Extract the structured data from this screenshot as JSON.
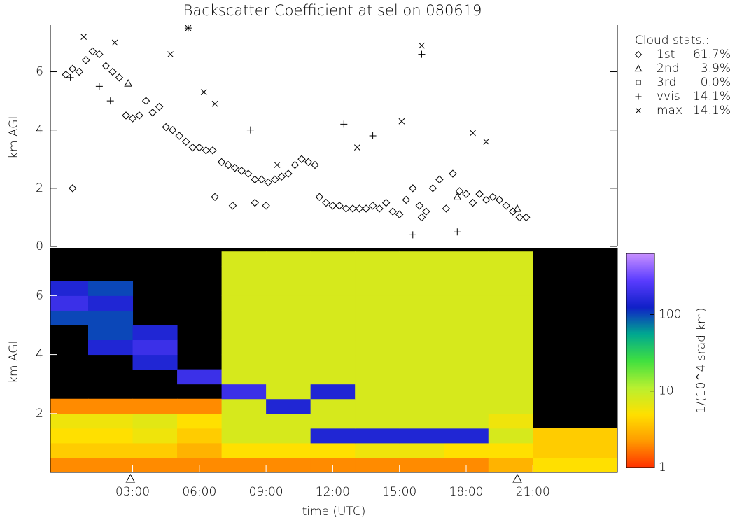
{
  "chart_data": [
    {
      "type": "scatter",
      "title": "Backscatter Coefficient at sel on 080619",
      "ylabel": "km AGL",
      "xlim": [
        -0.7,
        24.8
      ],
      "ylim": [
        0,
        7.6
      ],
      "yticks": [
        0,
        2,
        4,
        6
      ],
      "legend_title": "Cloud stats.:",
      "series": [
        {
          "name": "1st",
          "marker": "diamond",
          "color": "#000000",
          "value": 61.7,
          "value_label": "61.7%",
          "x": [
            0,
            0.3,
            0.6,
            0.9,
            1.2,
            1.5,
            1.8,
            2.1,
            2.4,
            2.7,
            3.0,
            3.3,
            3.6,
            3.9,
            4.2,
            4.5,
            4.8,
            5.1,
            5.4,
            5.7,
            6.0,
            6.3,
            6.6,
            7.0,
            7.3,
            7.6,
            7.9,
            8.2,
            8.5,
            8.8,
            9.1,
            9.4,
            9.7,
            10.0,
            10.3,
            10.6,
            10.9,
            11.2,
            11.4,
            11.7,
            12.0,
            12.3,
            12.6,
            12.9,
            13.2,
            13.5,
            13.8,
            14.1,
            14.4,
            14.7,
            15.0,
            15.3,
            15.6,
            15.9,
            16.2,
            16.5,
            16.8,
            17.1,
            17.4,
            17.7,
            18.0,
            18.3,
            18.6,
            18.9,
            19.2,
            19.5,
            19.8,
            20.1,
            20.4,
            20.7,
            0.3,
            6.7,
            7.5,
            8.5,
            9.0,
            16.0
          ],
          "y": [
            5.9,
            6.1,
            6.0,
            6.4,
            6.7,
            6.6,
            6.2,
            6.0,
            5.8,
            4.5,
            4.4,
            4.5,
            5.0,
            4.6,
            4.8,
            4.1,
            4.0,
            3.8,
            3.6,
            3.4,
            3.4,
            3.3,
            3.3,
            2.9,
            2.8,
            2.7,
            2.6,
            2.5,
            2.3,
            2.3,
            2.2,
            2.3,
            2.4,
            2.5,
            2.8,
            3.0,
            2.9,
            2.8,
            1.7,
            1.5,
            1.4,
            1.4,
            1.3,
            1.3,
            1.3,
            1.3,
            1.4,
            1.3,
            1.5,
            1.2,
            1.1,
            1.6,
            2.0,
            1.4,
            1.2,
            2.0,
            2.3,
            1.3,
            2.5,
            1.9,
            1.8,
            1.5,
            1.8,
            1.6,
            1.7,
            1.6,
            1.4,
            1.2,
            1.0,
            1.0,
            2.0,
            1.7,
            1.4,
            1.5,
            1.4,
            1.0
          ]
        },
        {
          "name": "2nd",
          "marker": "triangle",
          "color": "#000000",
          "value": 3.9,
          "value_label": "3.9%",
          "x": [
            2.8,
            17.6,
            20.3
          ],
          "y": [
            5.6,
            1.7,
            1.3
          ]
        },
        {
          "name": "3rd",
          "marker": "square",
          "color": "#000000",
          "value": 0.0,
          "value_label": "0.0%",
          "x": [],
          "y": []
        },
        {
          "name": "vvis",
          "marker": "plus",
          "color": "#000000",
          "value": 14.1,
          "value_label": "14.1%",
          "x": [
            0.2,
            1.5,
            2.0,
            5.5,
            13.8,
            16.0,
            15.6,
            17.6,
            12.5,
            8.3
          ],
          "y": [
            5.8,
            5.5,
            5.0,
            7.5,
            3.8,
            6.6,
            0.4,
            0.5,
            4.2,
            4.0
          ]
        },
        {
          "name": "max",
          "marker": "cross",
          "color": "#000000",
          "value": 14.1,
          "value_label": "14.1%",
          "x": [
            0.8,
            2.2,
            5.5,
            4.7,
            6.2,
            6.7,
            16.0,
            15.1,
            13.1,
            18.3,
            18.9,
            9.5
          ],
          "y": [
            7.2,
            7.0,
            7.5,
            6.6,
            5.3,
            4.9,
            6.9,
            4.3,
            3.4,
            3.9,
            3.6,
            2.8
          ]
        }
      ]
    },
    {
      "type": "heatmap",
      "ylabel": "km AGL",
      "xlabel": "time (UTC)",
      "xlim": [
        -0.7,
        24.8
      ],
      "ylim": [
        0,
        7.6
      ],
      "xticks": [
        {
          "value": 3,
          "label": "03:00"
        },
        {
          "value": 6,
          "label": "06:00"
        },
        {
          "value": 9,
          "label": "09:00"
        },
        {
          "value": 12,
          "label": "12:00"
        },
        {
          "value": 15,
          "label": "15:00"
        },
        {
          "value": 18,
          "label": "18:00"
        },
        {
          "value": 21,
          "label": "21:00"
        }
      ],
      "yticks": [
        2,
        4,
        6
      ],
      "x": [
        0,
        2,
        4,
        6,
        8,
        10,
        12,
        14,
        16,
        18,
        20,
        22,
        24
      ],
      "y": [
        0.25,
        0.75,
        1.25,
        1.75,
        2.25,
        2.75,
        3.25,
        3.75,
        4.25,
        4.75,
        5.25,
        5.75,
        6.25,
        6.75,
        7.25
      ],
      "z": [
        [
          2,
          2,
          2,
          2,
          2,
          2,
          2,
          2,
          2,
          2,
          3,
          5,
          5
        ],
        [
          4,
          4,
          4,
          3,
          5,
          5,
          5,
          6,
          6,
          5,
          5,
          4,
          4
        ],
        [
          5,
          5,
          6,
          4,
          8,
          8,
          150,
          150,
          150,
          150,
          8,
          4,
          4
        ],
        [
          6,
          6,
          7,
          5,
          8,
          8,
          8,
          8,
          8,
          8,
          6,
          null,
          null
        ],
        [
          2,
          2,
          2,
          2,
          8,
          150,
          8,
          8,
          8,
          8,
          8,
          null,
          null
        ],
        [
          null,
          null,
          null,
          null,
          200,
          8,
          150,
          8,
          8,
          8,
          8,
          null,
          null
        ],
        [
          null,
          null,
          null,
          200,
          8,
          8,
          8,
          8,
          8,
          8,
          8,
          null,
          null
        ],
        [
          null,
          null,
          150,
          null,
          8,
          8,
          8,
          8,
          8,
          8,
          8,
          null,
          null
        ],
        [
          null,
          150,
          200,
          null,
          8,
          8,
          8,
          8,
          8,
          8,
          8,
          null,
          null
        ],
        [
          null,
          100,
          150,
          null,
          8,
          8,
          8,
          8,
          8,
          8,
          8,
          null,
          null
        ],
        [
          100,
          100,
          null,
          null,
          8,
          8,
          8,
          8,
          8,
          8,
          8,
          null,
          null
        ],
        [
          200,
          150,
          null,
          null,
          8,
          8,
          8,
          8,
          8,
          8,
          8,
          null,
          null
        ],
        [
          150,
          100,
          null,
          null,
          8,
          8,
          8,
          8,
          8,
          8,
          8,
          null,
          null
        ],
        [
          null,
          null,
          null,
          null,
          8,
          8,
          8,
          8,
          8,
          8,
          8,
          null,
          null
        ],
        [
          null,
          null,
          null,
          null,
          8,
          8,
          8,
          8,
          8,
          8,
          8,
          null,
          null
        ]
      ],
      "zlim": [
        1,
        630
      ],
      "zticks": [
        1,
        10,
        100
      ],
      "colorbar_label": "1/(10^4 srad km)",
      "colorscale": [
        "#ff3000",
        "#ff9a00",
        "#ffe000",
        "#b8f030",
        "#40e040",
        "#00a890",
        "#1020c8",
        "#5a3cff",
        "#c890ff"
      ],
      "markers_x": [
        2.9,
        20.3
      ]
    }
  ]
}
